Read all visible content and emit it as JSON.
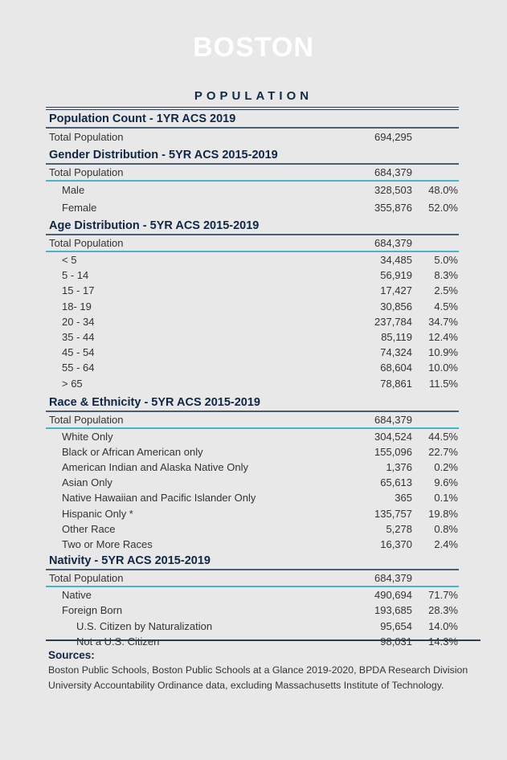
{
  "logo": "BOSTON",
  "title": "POPULATION",
  "colors": {
    "background": "#e8e8e8",
    "heading": "#0f2646",
    "accent_line": "#45b6c6",
    "rule": "#2c3e55"
  },
  "sections": [
    {
      "title": "Population Count - 1YR ACS 2019",
      "total": {
        "label": "Total Population",
        "value": "694,295"
      },
      "rows": []
    },
    {
      "title": "Gender Distribution - 5YR ACS 2015-2019",
      "total": {
        "label": "Total Population",
        "value": "684,379"
      },
      "rows": [
        {
          "label": "Male",
          "value": "328,503",
          "pct": "48.0%"
        },
        {
          "label": "Female",
          "value": "355,876",
          "pct": "52.0%"
        }
      ]
    },
    {
      "title": "Age Distribution - 5YR ACS 2015-2019",
      "total": {
        "label": "Total Population",
        "value": "684,379"
      },
      "rows": [
        {
          "label": "< 5",
          "value": "34,485",
          "pct": "5.0%"
        },
        {
          "label": "5 - 14",
          "value": "56,919",
          "pct": "8.3%"
        },
        {
          "label": "15 - 17",
          "value": "17,427",
          "pct": "2.5%"
        },
        {
          "label": "18- 19",
          "value": "30,856",
          "pct": "4.5%"
        },
        {
          "label": "20 - 34",
          "value": "237,784",
          "pct": "34.7%"
        },
        {
          "label": "35 - 44",
          "value": "85,119",
          "pct": "12.4%"
        },
        {
          "label": "45 - 54",
          "value": "74,324",
          "pct": "10.9%"
        },
        {
          "label": "55 - 64",
          "value": "68,604",
          "pct": "10.0%"
        },
        {
          "label": "> 65",
          "value": "78,861",
          "pct": "11.5%"
        }
      ]
    },
    {
      "title": "Race & Ethnicity - 5YR ACS 2015-2019",
      "total": {
        "label": "Total Population",
        "value": "684,379"
      },
      "rows": [
        {
          "label": "White Only",
          "value": "304,524",
          "pct": "44.5%"
        },
        {
          "label": "Black or African American only",
          "value": "155,096",
          "pct": "22.7%"
        },
        {
          "label": "American Indian and Alaska Native Only",
          "value": "1,376",
          "pct": "0.2%"
        },
        {
          "label": "Asian Only",
          "value": "65,613",
          "pct": "9.6%"
        },
        {
          "label": "Native Hawaiian and Pacific Islander Only",
          "value": "365",
          "pct": "0.1%"
        },
        {
          "label": "Hispanic Only *",
          "value": "135,757",
          "pct": "19.8%"
        },
        {
          "label": "Other Race",
          "value": "5,278",
          "pct": "0.8%"
        },
        {
          "label": "Two or More Races",
          "value": "16,370",
          "pct": "2.4%"
        }
      ]
    },
    {
      "title": "Nativity - 5YR ACS 2015-2019",
      "total": {
        "label": "Total Population",
        "value": "684,379"
      },
      "rows": [
        {
          "label": "Native",
          "value": "490,694",
          "pct": "71.7%"
        },
        {
          "label": "Foreign Born",
          "value": "193,685",
          "pct": "28.3%"
        },
        {
          "label": "U.S. Citizen by Naturalization",
          "value": "95,654",
          "pct": "14.0%",
          "indent": 2
        },
        {
          "label": "Not a U.S. Citizen",
          "value": "98,031",
          "pct": "14.3%",
          "indent": 2
        }
      ]
    }
  ],
  "sources": {
    "title": "Sources:",
    "lines": [
      "Boston Public Schools, Boston Public Schools at a Glance 2019-2020, BPDA Research Division",
      "University Accountability Ordinance data, excluding Massachusetts Institute of Technology."
    ]
  }
}
